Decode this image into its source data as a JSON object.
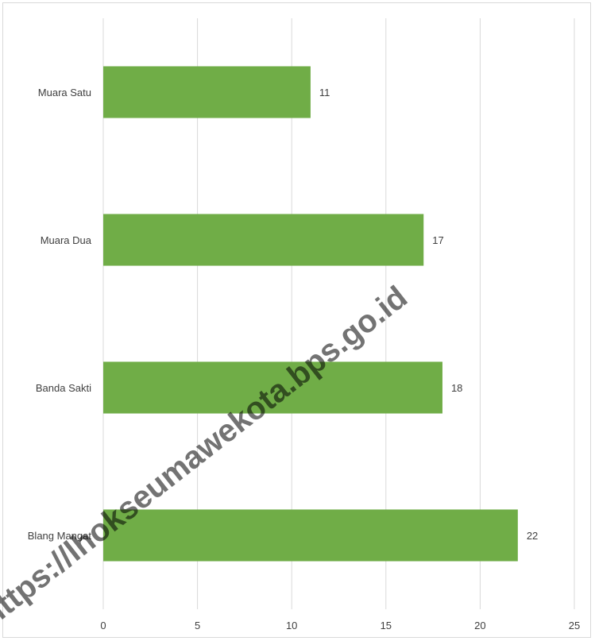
{
  "chart_data": {
    "type": "bar",
    "orientation": "horizontal",
    "categories": [
      "Muara Satu",
      "Muara Dua",
      "Banda Sakti",
      "Blang Mangat"
    ],
    "values": [
      11,
      17,
      18,
      22
    ],
    "data_labels": [
      "11",
      "17",
      "18",
      "22"
    ],
    "x_ticks": [
      "0",
      "5",
      "10",
      "15",
      "20",
      "25"
    ],
    "xlim": [
      0,
      25
    ],
    "grid": "vertical",
    "legend": "none",
    "title": "",
    "xlabel": "",
    "ylabel": ""
  },
  "colors": {
    "bar": "#70ad47",
    "grid": "#d9d9d9",
    "text": "#404040"
  },
  "watermark": {
    "text": "https://lhokseumawekota.bps.go.id"
  }
}
